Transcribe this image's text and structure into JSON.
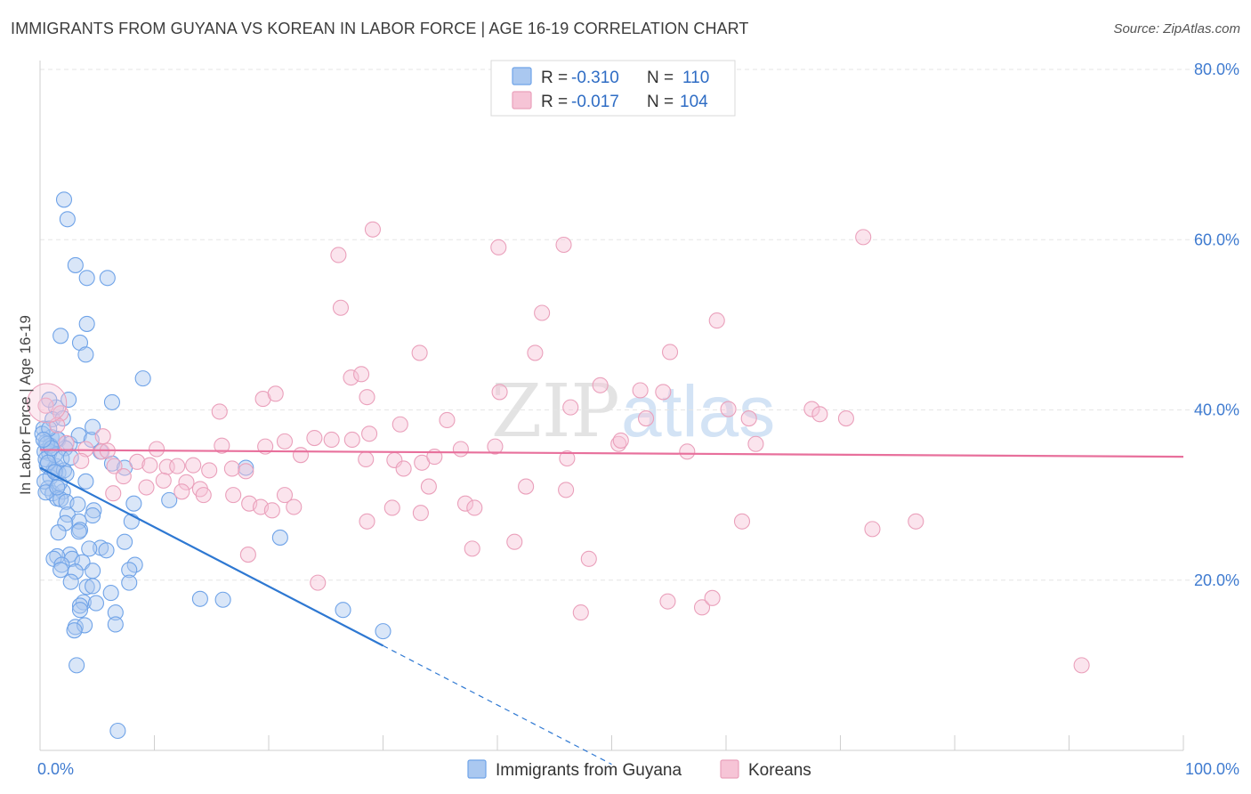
{
  "chart_data": {
    "type": "scatter",
    "title": "IMMIGRANTS FROM GUYANA VS KOREAN IN LABOR FORCE | AGE 16-19 CORRELATION CHART",
    "source": "Source: ZipAtlas.com",
    "xlabel": "",
    "ylabel": "In Labor Force | Age 16-19",
    "xlim": [
      0,
      100
    ],
    "ylim": [
      0,
      80
    ],
    "x_ticks": [
      0,
      10,
      20,
      30,
      40,
      50,
      60,
      70,
      80,
      90,
      100
    ],
    "x_tick_labels": [
      {
        "value": 0,
        "label": "0.0%"
      },
      {
        "value": 100,
        "label": "100.0%"
      }
    ],
    "y_tick_labels": [
      {
        "value": 20,
        "label": "20.0%"
      },
      {
        "value": 40,
        "label": "40.0%"
      },
      {
        "value": 60,
        "label": "60.0%"
      },
      {
        "value": 80,
        "label": "80.0%"
      }
    ],
    "watermark": {
      "part1": "ZIP",
      "part2": "atlas"
    },
    "legend_stats": {
      "r_prefix": "R = ",
      "n_prefix": "N = ",
      "rows": [
        {
          "r": "-0.310",
          "n": "110"
        },
        {
          "r": "-0.017",
          "n": "104"
        }
      ]
    },
    "series": [
      {
        "name": "Immigrants from Guyana",
        "color": "#6fa3e8",
        "fill": "#aac8f0",
        "line_color": "#2e78d2",
        "trend": {
          "x0": 0,
          "y0": 33.2,
          "x1": 30,
          "y1": 12.3,
          "dash_to_x": 50
        },
        "points": [
          [
            0.3,
            37.8
          ],
          [
            0.5,
            36.2
          ],
          [
            0.4,
            35.1
          ],
          [
            0.8,
            34.9
          ],
          [
            1.0,
            36.8
          ],
          [
            0.6,
            33.5
          ],
          [
            1.2,
            33.0
          ],
          [
            1.4,
            33.4
          ],
          [
            0.9,
            32.1
          ],
          [
            1.6,
            32.6
          ],
          [
            0.7,
            30.8
          ],
          [
            1.1,
            30.2
          ],
          [
            2.0,
            30.4
          ],
          [
            1.5,
            29.6
          ],
          [
            1.8,
            29.5
          ],
          [
            2.3,
            29.2
          ],
          [
            3.3,
            28.9
          ],
          [
            4.7,
            28.2
          ],
          [
            2.4,
            27.7
          ],
          [
            3.4,
            26.9
          ],
          [
            2.2,
            26.7
          ],
          [
            3.5,
            25.9
          ],
          [
            1.6,
            25.6
          ],
          [
            3.4,
            25.7
          ],
          [
            4.6,
            27.6
          ],
          [
            8.2,
            29.0
          ],
          [
            8.0,
            26.9
          ],
          [
            7.4,
            24.5
          ],
          [
            5.3,
            23.8
          ],
          [
            4.3,
            23.7
          ],
          [
            2.6,
            23.0
          ],
          [
            1.5,
            22.8
          ],
          [
            1.2,
            22.5
          ],
          [
            2.8,
            22.5
          ],
          [
            5.8,
            23.5
          ],
          [
            3.7,
            22.1
          ],
          [
            1.9,
            21.8
          ],
          [
            1.8,
            21.2
          ],
          [
            3.1,
            21.0
          ],
          [
            8.3,
            21.8
          ],
          [
            7.8,
            21.2
          ],
          [
            4.6,
            21.1
          ],
          [
            7.8,
            19.7
          ],
          [
            2.7,
            19.8
          ],
          [
            4.1,
            19.2
          ],
          [
            4.6,
            19.3
          ],
          [
            6.2,
            18.5
          ],
          [
            3.8,
            17.4
          ],
          [
            3.5,
            17.0
          ],
          [
            4.9,
            17.3
          ],
          [
            3.5,
            16.5
          ],
          [
            6.6,
            16.2
          ],
          [
            3.1,
            14.5
          ],
          [
            3.9,
            14.7
          ],
          [
            3.0,
            14.1
          ],
          [
            6.6,
            14.8
          ],
          [
            3.2,
            10.0
          ],
          [
            6.8,
            2.3
          ],
          [
            1.4,
            40.3
          ],
          [
            0.8,
            41.2
          ],
          [
            1.1,
            38.9
          ],
          [
            2.0,
            39.0
          ],
          [
            1.6,
            36.5
          ],
          [
            2.6,
            36.0
          ],
          [
            3.4,
            37.0
          ],
          [
            4.5,
            36.5
          ],
          [
            4.6,
            38.0
          ],
          [
            5.3,
            35.1
          ],
          [
            6.3,
            33.7
          ],
          [
            0.5,
            34.2
          ],
          [
            0.2,
            37.2
          ],
          [
            0.9,
            35.8
          ],
          [
            1.3,
            34.7
          ],
          [
            0.4,
            31.6
          ],
          [
            1.7,
            31.4
          ],
          [
            2.1,
            32.9
          ],
          [
            2.2,
            35.5
          ],
          [
            1.5,
            36.6
          ],
          [
            0.8,
            37.8
          ],
          [
            9.0,
            43.7
          ],
          [
            6.3,
            40.9
          ],
          [
            2.5,
            41.2
          ],
          [
            3.5,
            47.9
          ],
          [
            4.0,
            46.5
          ],
          [
            1.8,
            48.7
          ],
          [
            4.1,
            50.1
          ],
          [
            5.9,
            55.5
          ],
          [
            4.1,
            55.5
          ],
          [
            3.1,
            57.0
          ],
          [
            2.4,
            62.4
          ],
          [
            2.1,
            64.7
          ],
          [
            7.4,
            33.2
          ],
          [
            11.3,
            29.4
          ],
          [
            14.0,
            17.8
          ],
          [
            16.0,
            17.7
          ],
          [
            18.0,
            33.2
          ],
          [
            21.0,
            25.0
          ],
          [
            26.5,
            16.5
          ],
          [
            30.0,
            14.0
          ],
          [
            0.6,
            36.0
          ],
          [
            1.0,
            35.5
          ],
          [
            1.9,
            34.3
          ],
          [
            0.3,
            36.5
          ],
          [
            0.7,
            33.8
          ],
          [
            1.3,
            32.7
          ],
          [
            2.7,
            34.4
          ],
          [
            0.5,
            30.3
          ],
          [
            1.5,
            30.9
          ],
          [
            4.0,
            31.6
          ],
          [
            2.3,
            32.5
          ]
        ]
      },
      {
        "name": "Koreans",
        "color": "#eaa0bb",
        "fill": "#f6c4d6",
        "line_color": "#e8709c",
        "trend": {
          "x0": 0,
          "y0": 35.3,
          "x1": 100,
          "y1": 34.5
        },
        "points": [
          [
            0.5,
            40.5
          ],
          [
            1.8,
            39.6
          ],
          [
            1.5,
            38.2
          ],
          [
            2.3,
            36.1
          ],
          [
            4.0,
            35.4
          ],
          [
            5.4,
            35.1
          ],
          [
            5.9,
            35.2
          ],
          [
            3.6,
            34.0
          ],
          [
            6.5,
            33.4
          ],
          [
            8.5,
            33.9
          ],
          [
            11.1,
            33.3
          ],
          [
            14.8,
            32.9
          ],
          [
            16.8,
            33.1
          ],
          [
            15.9,
            35.8
          ],
          [
            10.2,
            35.4
          ],
          [
            13.4,
            33.5
          ],
          [
            19.7,
            35.7
          ],
          [
            21.4,
            36.3
          ],
          [
            22.8,
            34.7
          ],
          [
            25.5,
            36.5
          ],
          [
            27.3,
            36.5
          ],
          [
            28.8,
            37.2
          ],
          [
            28.5,
            34.2
          ],
          [
            31.0,
            34.1
          ],
          [
            33.4,
            33.8
          ],
          [
            34.5,
            34.5
          ],
          [
            36.8,
            35.4
          ],
          [
            39.8,
            35.7
          ],
          [
            46.1,
            34.3
          ],
          [
            50.6,
            36.0
          ],
          [
            50.8,
            36.4
          ],
          [
            56.6,
            35.1
          ],
          [
            62.6,
            36.0
          ],
          [
            70.5,
            39.0
          ],
          [
            18.0,
            32.8
          ],
          [
            7.3,
            32.2
          ],
          [
            10.8,
            31.7
          ],
          [
            12.8,
            31.5
          ],
          [
            14.0,
            30.7
          ],
          [
            9.3,
            30.9
          ],
          [
            12.4,
            30.4
          ],
          [
            14.3,
            30.0
          ],
          [
            16.9,
            30.0
          ],
          [
            18.3,
            29.0
          ],
          [
            19.3,
            28.6
          ],
          [
            20.3,
            28.2
          ],
          [
            21.4,
            30.0
          ],
          [
            22.2,
            28.6
          ],
          [
            6.4,
            30.2
          ],
          [
            9.6,
            33.5
          ],
          [
            12.0,
            33.4
          ],
          [
            31.8,
            33.1
          ],
          [
            34.0,
            31.0
          ],
          [
            37.2,
            29.0
          ],
          [
            38.0,
            28.5
          ],
          [
            42.5,
            31.0
          ],
          [
            46.0,
            30.6
          ],
          [
            30.8,
            28.5
          ],
          [
            28.6,
            26.9
          ],
          [
            33.3,
            27.9
          ],
          [
            37.8,
            23.7
          ],
          [
            41.5,
            24.5
          ],
          [
            48.0,
            22.5
          ],
          [
            61.4,
            26.9
          ],
          [
            72.8,
            26.0
          ],
          [
            76.6,
            26.9
          ],
          [
            24.3,
            19.7
          ],
          [
            18.2,
            23.0
          ],
          [
            47.3,
            16.2
          ],
          [
            54.9,
            17.5
          ],
          [
            57.9,
            16.8
          ],
          [
            58.8,
            17.9
          ],
          [
            91.1,
            10.0
          ],
          [
            15.7,
            39.8
          ],
          [
            19.5,
            41.3
          ],
          [
            20.6,
            41.9
          ],
          [
            27.2,
            43.8
          ],
          [
            28.1,
            44.2
          ],
          [
            28.6,
            41.5
          ],
          [
            31.5,
            38.3
          ],
          [
            35.6,
            38.8
          ],
          [
            40.2,
            42.1
          ],
          [
            46.4,
            40.3
          ],
          [
            49.0,
            42.9
          ],
          [
            52.5,
            42.3
          ],
          [
            53.0,
            39.0
          ],
          [
            54.5,
            42.1
          ],
          [
            62.0,
            39.0
          ],
          [
            60.2,
            40.1
          ],
          [
            67.5,
            40.1
          ],
          [
            68.2,
            39.5
          ],
          [
            33.2,
            46.7
          ],
          [
            43.3,
            46.7
          ],
          [
            55.1,
            46.8
          ],
          [
            26.3,
            52.0
          ],
          [
            43.9,
            51.4
          ],
          [
            59.2,
            50.5
          ],
          [
            26.1,
            58.2
          ],
          [
            29.1,
            61.2
          ],
          [
            40.1,
            59.1
          ],
          [
            45.8,
            59.4
          ],
          [
            72.0,
            60.3
          ],
          [
            5.5,
            36.9
          ],
          [
            24.0,
            36.7
          ]
        ]
      }
    ]
  }
}
